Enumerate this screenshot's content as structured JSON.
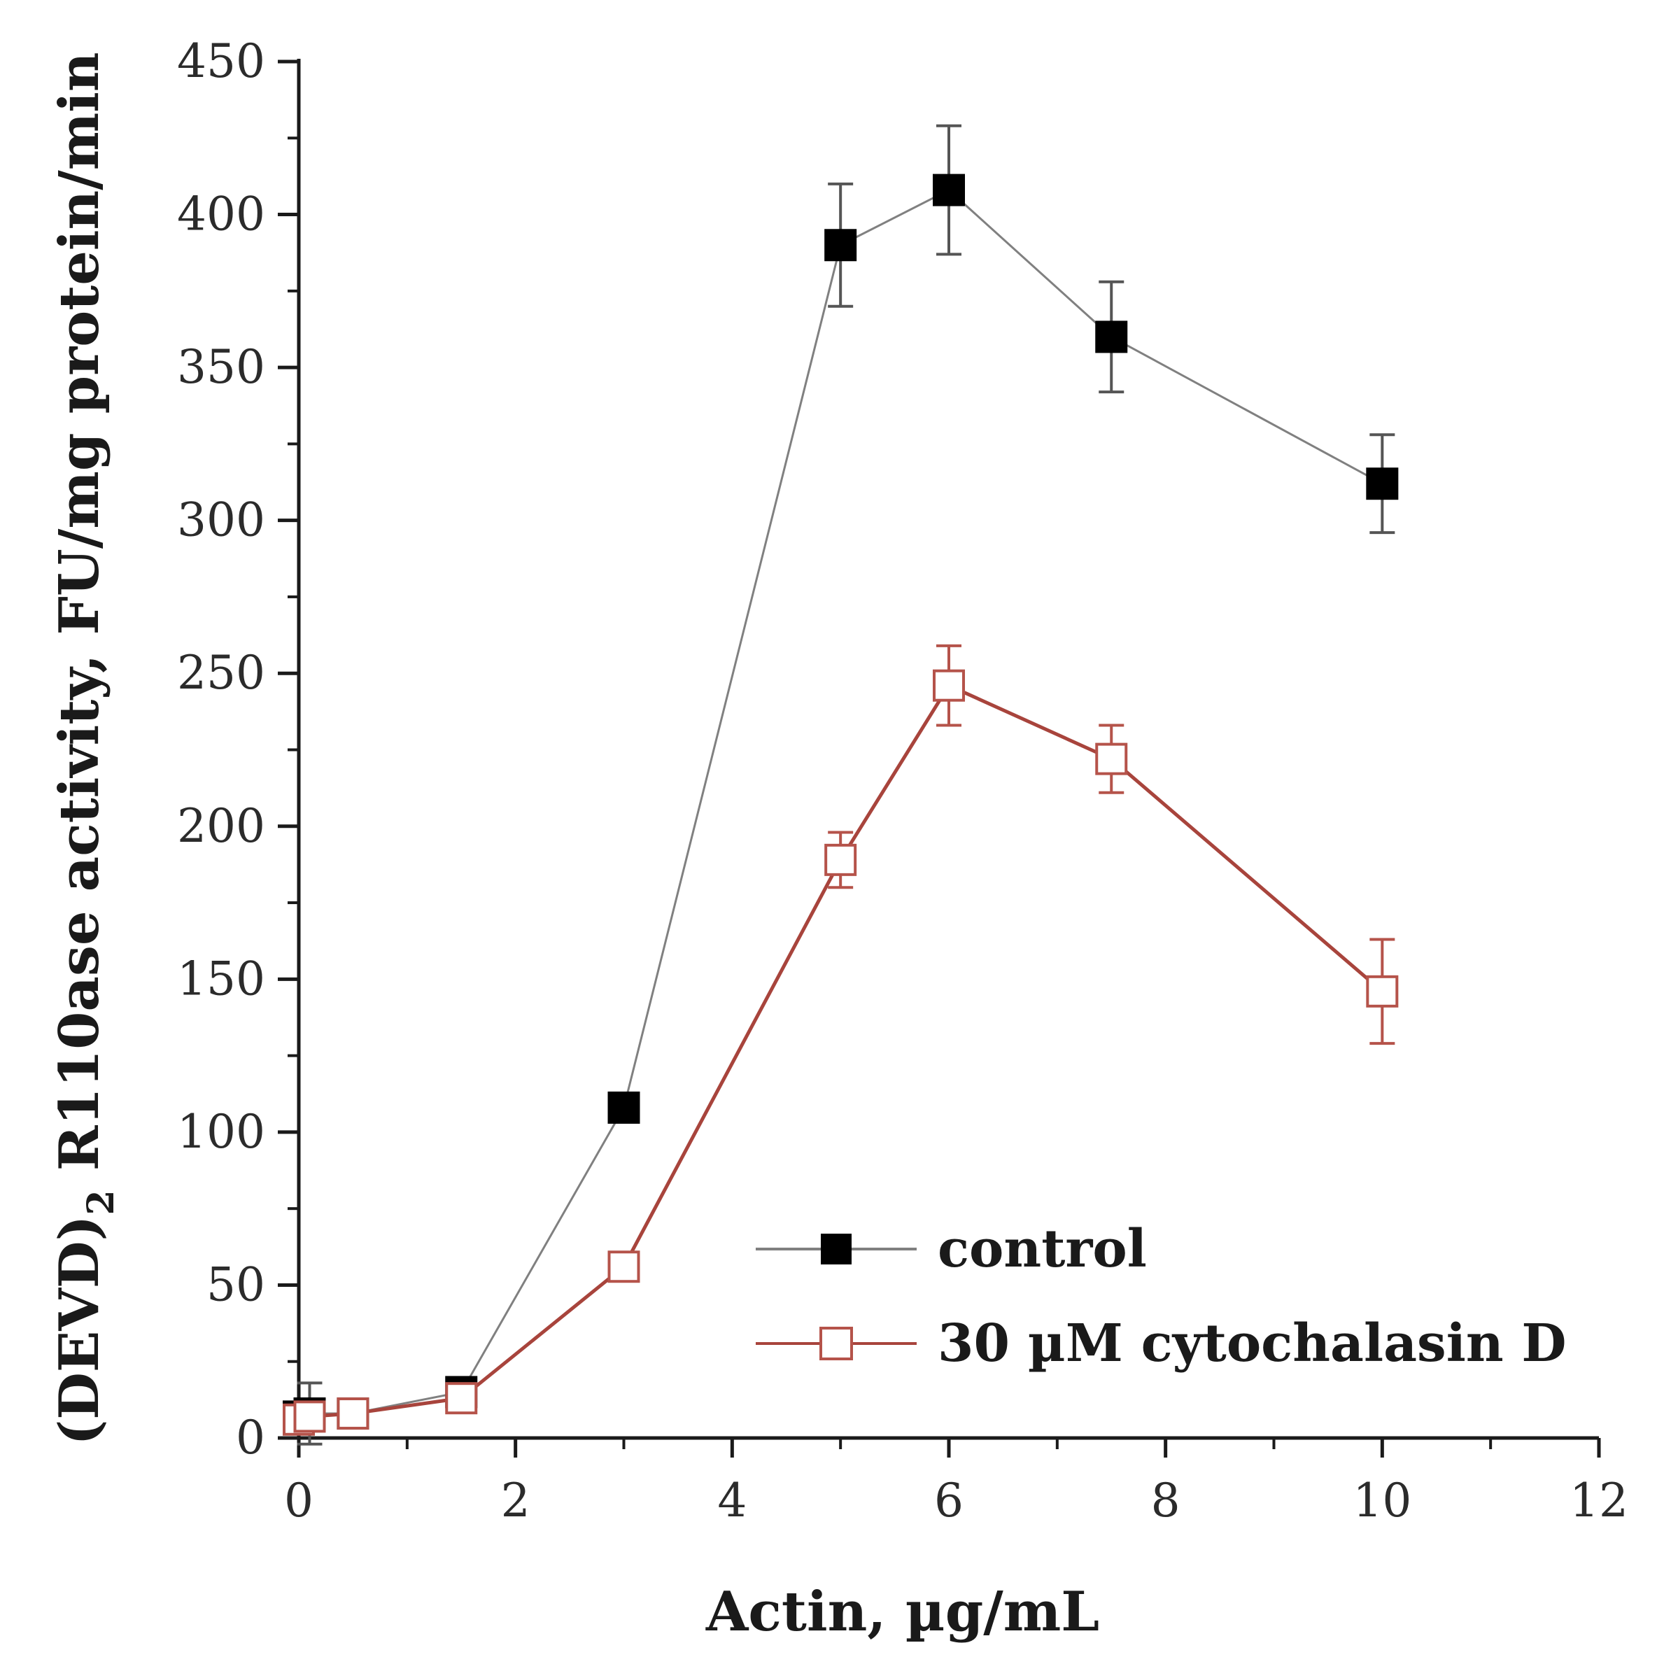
{
  "chart_data": {
    "type": "line",
    "title": "",
    "xlabel": "Actin, µg/mL",
    "ylabel_main": "(DEVD)",
    "ylabel_sub": "2",
    "ylabel_rest": " R110ase activity, FU/mg protein/min",
    "xlim": [
      0,
      12
    ],
    "ylim": [
      0,
      450
    ],
    "xticks": [
      0,
      2,
      4,
      6,
      8,
      10,
      12
    ],
    "xtick_labels": [
      "0",
      "2",
      "4",
      "6",
      "8",
      "10",
      "12"
    ],
    "yticks": [
      0,
      50,
      100,
      150,
      200,
      250,
      300,
      350,
      400,
      450
    ],
    "ytick_labels": [
      "0",
      "50",
      "100",
      "150",
      "200",
      "250",
      "300",
      "350",
      "400",
      "450"
    ],
    "legend_position": "lower-right",
    "series": [
      {
        "name": "control",
        "color": "#000000",
        "line_color": "#808080",
        "marker": "filled-square",
        "x": [
          0,
          0.1,
          0.5,
          1.5,
          3,
          5,
          6,
          7.5,
          10
        ],
        "y": [
          7,
          8,
          8,
          15,
          108,
          390,
          408,
          360,
          312
        ],
        "err": [
          3,
          10,
          3,
          3,
          3,
          20,
          21,
          18,
          16
        ]
      },
      {
        "name": "30 µM cytochalasin D",
        "color": "#b5534a",
        "line_color": "#a8443c",
        "marker": "open-square",
        "x": [
          0,
          0.1,
          0.5,
          1.5,
          3,
          5,
          6,
          7.5,
          10
        ],
        "y": [
          6,
          7,
          8,
          13,
          56,
          189,
          246,
          222,
          146
        ],
        "err": [
          2,
          3,
          2,
          3,
          3,
          9,
          13,
          11,
          17
        ]
      }
    ]
  }
}
